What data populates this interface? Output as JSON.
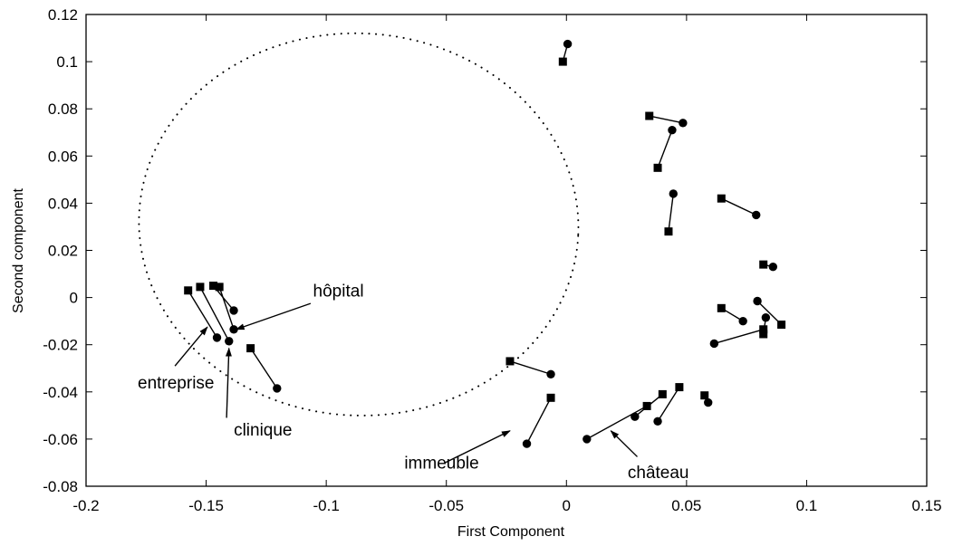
{
  "chart_data": {
    "type": "scatter",
    "title": "",
    "xlabel": "First Component",
    "ylabel": "Second component",
    "xlim": [
      -0.2,
      0.15
    ],
    "ylim": [
      -0.08,
      0.12
    ],
    "x_ticks": [
      -0.2,
      -0.15,
      -0.1,
      -0.05,
      0,
      0.05,
      0.1,
      0.15
    ],
    "x_tick_labels": [
      "-0.2",
      "-0.15",
      "-0.1",
      "-0.05",
      "0",
      "0.05",
      "0.1",
      "0.15"
    ],
    "y_ticks": [
      -0.08,
      -0.06,
      -0.04,
      -0.02,
      0,
      0.02,
      0.04,
      0.06,
      0.08,
      0.1,
      0.12
    ],
    "y_tick_labels": [
      "-0.08",
      "-0.06",
      "-0.04",
      "-0.02",
      "0",
      "0.02",
      "0.04",
      "0.06",
      "0.08",
      "0.1",
      "0.12"
    ],
    "grid": false,
    "ellipse": {
      "center": [
        -0.0865,
        0.031
      ],
      "semi_axes": [
        0.0915,
        0.081
      ],
      "rotation_deg": 3,
      "style": "dotted"
    },
    "pairs": [
      {
        "square": [
          -0.0015,
          0.1
        ],
        "circle": [
          0.0005,
          0.1075
        ]
      },
      {
        "square": [
          0.0345,
          0.077
        ],
        "circle": [
          0.0485,
          0.074
        ]
      },
      {
        "square": [
          0.038,
          0.055
        ],
        "circle": [
          0.044,
          0.071
        ]
      },
      {
        "square": [
          0.0425,
          0.028
        ],
        "circle": [
          0.0445,
          0.044
        ]
      },
      {
        "square": [
          0.0645,
          0.042
        ],
        "circle": [
          0.079,
          0.035
        ]
      },
      {
        "square": [
          0.082,
          0.014
        ],
        "circle": [
          0.086,
          0.013
        ]
      },
      {
        "square": [
          0.0645,
          -0.0045
        ],
        "circle": [
          0.0735,
          -0.01
        ]
      },
      {
        "square": [
          0.0895,
          -0.0115
        ],
        "circle": [
          0.0795,
          -0.0015
        ]
      },
      {
        "square": [
          0.082,
          -0.0155
        ],
        "circle": [
          0.083,
          -0.0085
        ]
      },
      {
        "square": [
          0.082,
          -0.0135
        ],
        "circle": [
          0.0615,
          -0.0195
        ]
      },
      {
        "square": [
          0.0575,
          -0.0415
        ],
        "circle": [
          0.059,
          -0.0445
        ]
      },
      {
        "square": [
          0.047,
          -0.038
        ],
        "circle": [
          0.038,
          -0.0525
        ]
      },
      {
        "square": [
          0.04,
          -0.041
        ],
        "circle": [
          0.0285,
          -0.0505
        ]
      },
      {
        "square": [
          0.0335,
          -0.046
        ],
        "circle": [
          0.0085,
          -0.06
        ]
      },
      {
        "square": [
          -0.0235,
          -0.027
        ],
        "circle": [
          -0.0065,
          -0.0325
        ]
      },
      {
        "square": [
          -0.0065,
          -0.0425
        ],
        "circle": [
          -0.0165,
          -0.062
        ]
      },
      {
        "square": [
          -0.1575,
          0.003
        ],
        "circle": [
          -0.1455,
          -0.017
        ]
      },
      {
        "square": [
          -0.1525,
          0.0045
        ],
        "circle": [
          -0.1405,
          -0.0185
        ]
      },
      {
        "square": [
          -0.147,
          0.005
        ],
        "circle": [
          -0.1385,
          -0.0055
        ]
      },
      {
        "square": [
          -0.1445,
          0.0045
        ],
        "circle": [
          -0.1385,
          -0.0135
        ]
      },
      {
        "square": [
          -0.1315,
          -0.0215
        ],
        "circle": [
          -0.1205,
          -0.0385
        ]
      }
    ],
    "annotations": [
      {
        "text": "hôpital",
        "text_at": [
          -0.1055,
          0.0005
        ],
        "arrow_from": [
          -0.1065,
          -0.0025
        ],
        "arrow_to": [
          -0.1375,
          -0.0135
        ]
      },
      {
        "text": "entreprise",
        "text_at": [
          -0.1785,
          -0.0385
        ],
        "arrow_from": [
          -0.163,
          -0.029
        ],
        "arrow_to": [
          -0.1495,
          -0.0125
        ]
      },
      {
        "text": "clinique",
        "text_at": [
          -0.1385,
          -0.0585
        ],
        "arrow_from": [
          -0.1415,
          -0.051
        ],
        "arrow_to": [
          -0.1405,
          -0.0215
        ]
      },
      {
        "text": "immeuble",
        "text_at": [
          -0.0675,
          -0.0725
        ],
        "arrow_from": [
          -0.0505,
          -0.07
        ],
        "arrow_to": [
          -0.0235,
          -0.0565
        ]
      },
      {
        "text": "château",
        "text_at": [
          0.0255,
          -0.0765
        ],
        "arrow_from": [
          0.0295,
          -0.0675
        ],
        "arrow_to": [
          0.0185,
          -0.0565
        ]
      }
    ]
  }
}
